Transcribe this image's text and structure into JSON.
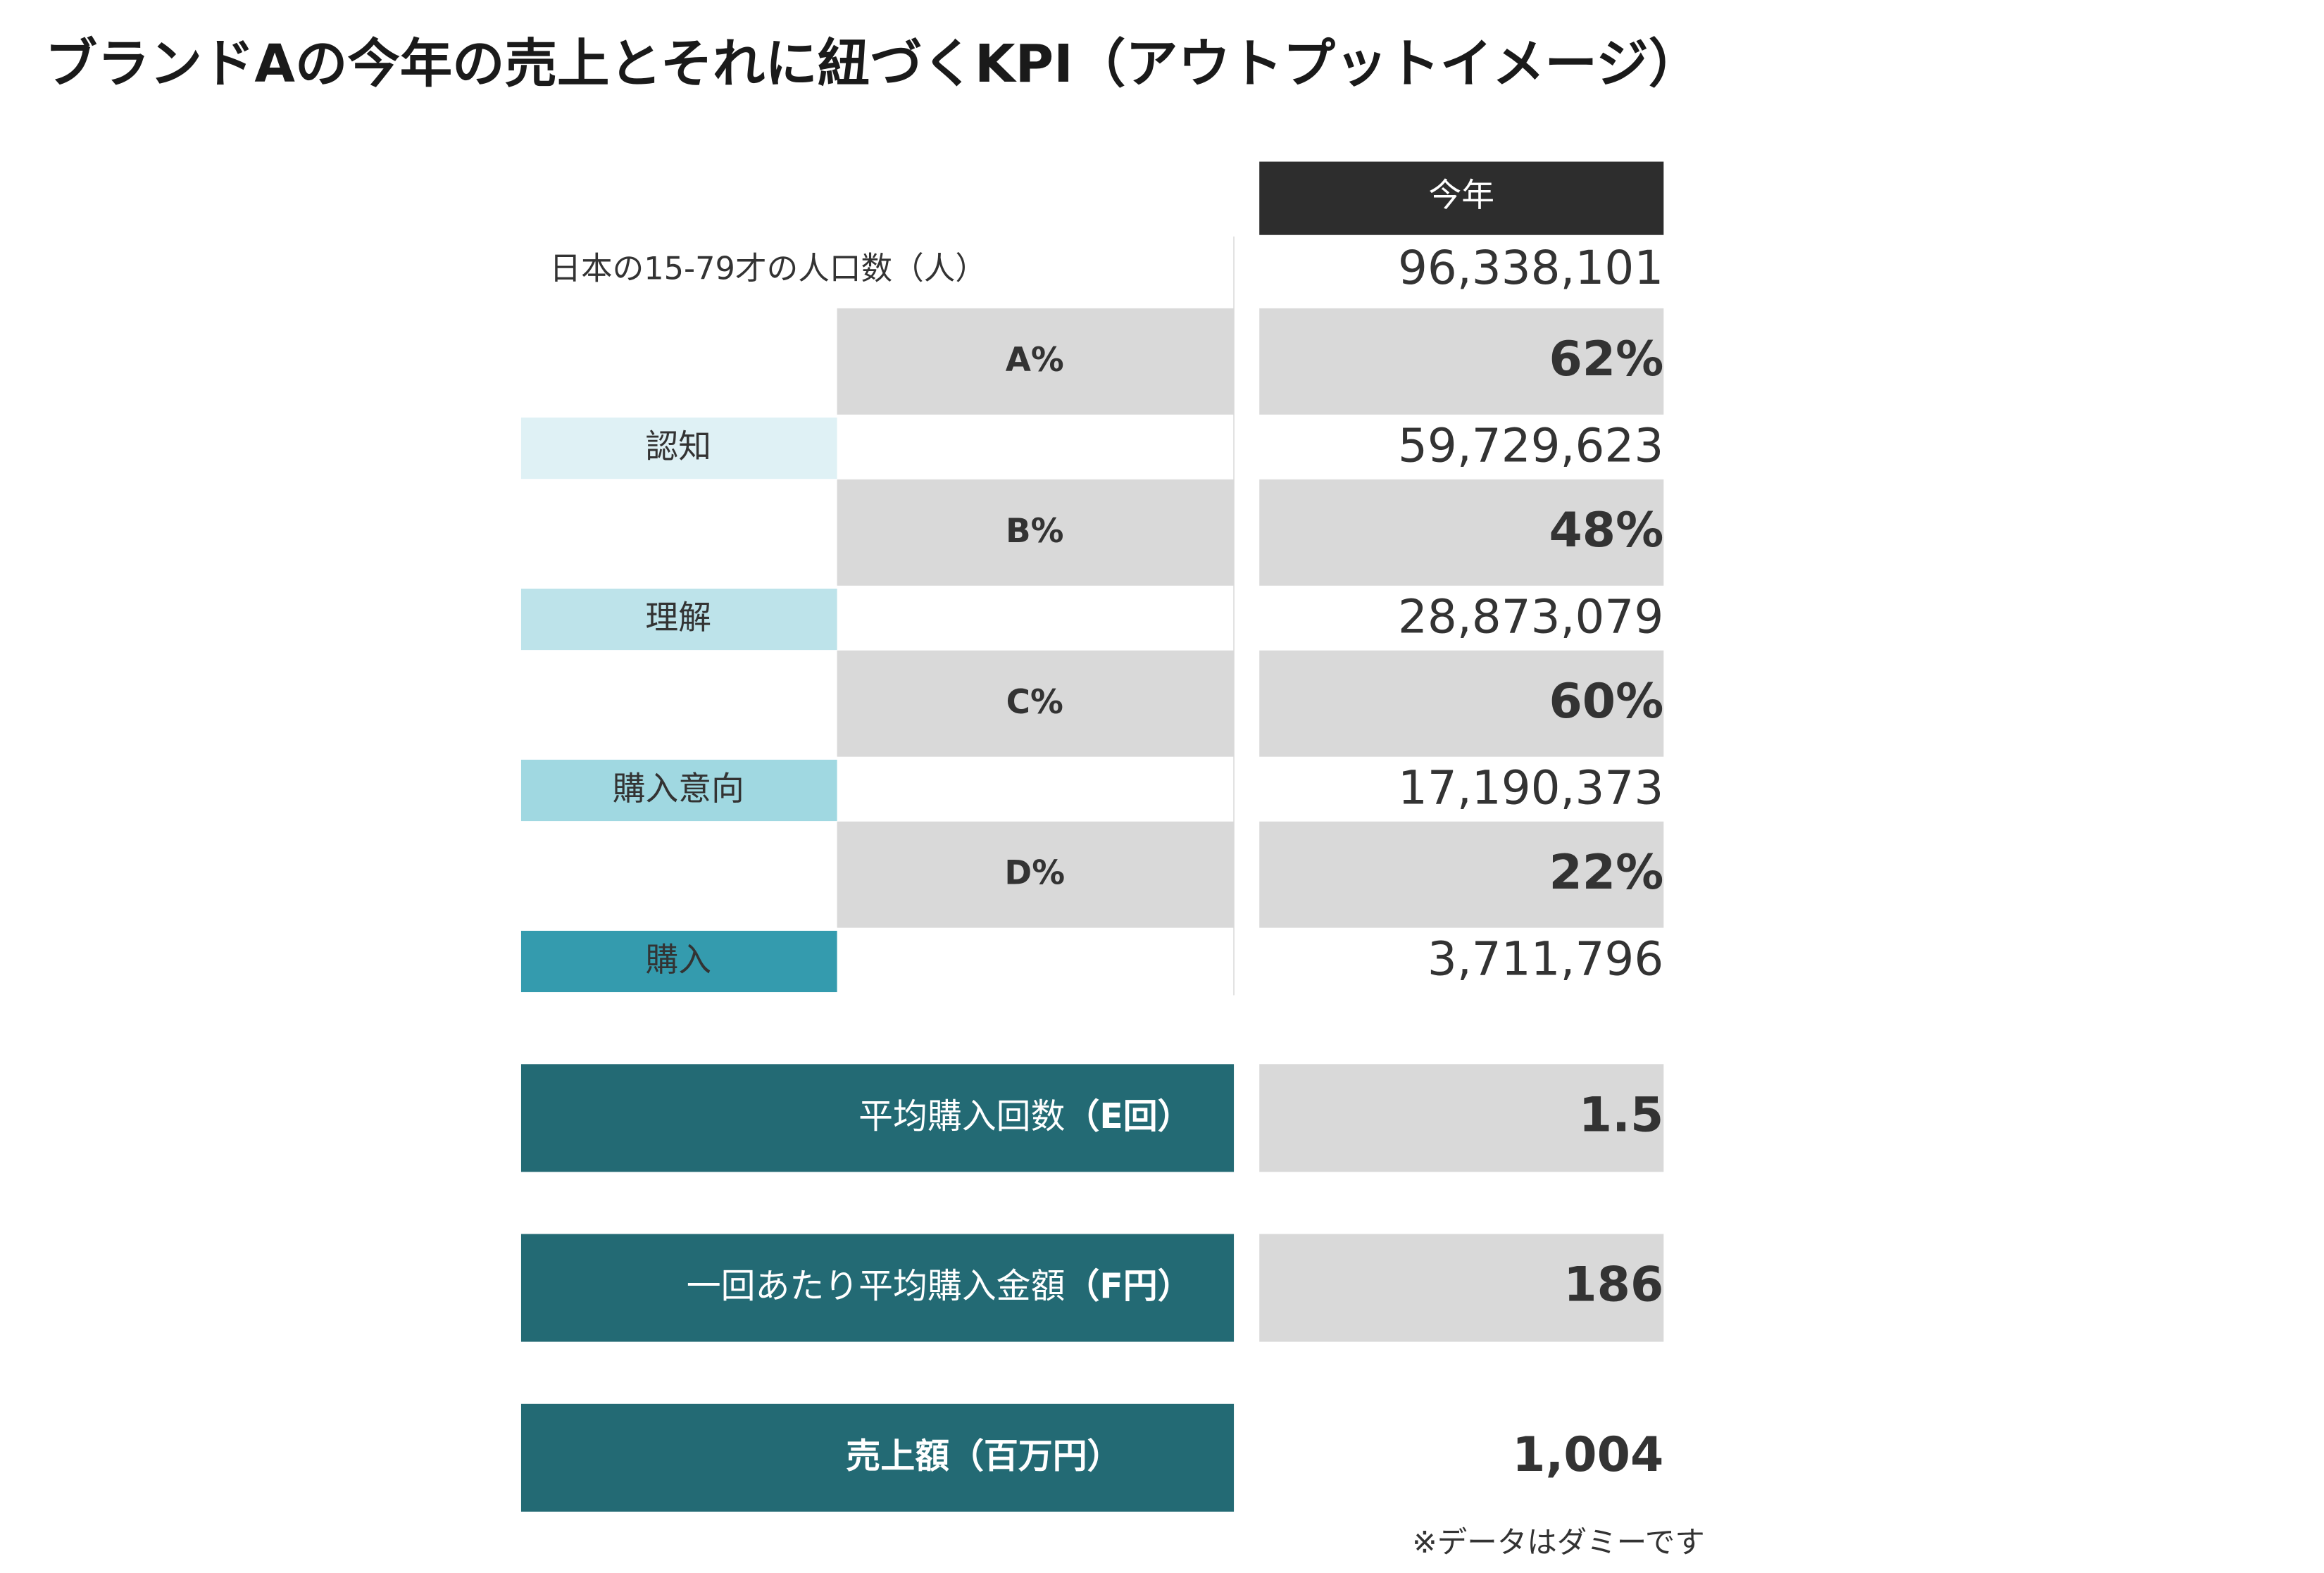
{
  "title": "ブランドAの今年の売上とそれに紐づくKPI（アウトプットイメージ）",
  "header": "今年",
  "base": {
    "label": "日本の15-79才の人口数（人）",
    "value": "96,338,101"
  },
  "funnel": [
    {
      "rate_label": "A%",
      "rate": "62%",
      "stage": "認知",
      "stage_value": "59,729,623",
      "color": "#dff1f5"
    },
    {
      "rate_label": "B%",
      "rate": "48%",
      "stage": "理解",
      "stage_value": "28,873,079",
      "color": "#bde3ea"
    },
    {
      "rate_label": "C%",
      "rate": "60%",
      "stage": "購入意向",
      "stage_value": "17,190,373",
      "color": "#a0d8e1"
    },
    {
      "rate_label": "D%",
      "rate": "22%",
      "stage": "購入",
      "stage_value": "3,711,796",
      "color": "#349bae"
    }
  ],
  "kpis": [
    {
      "label": "平均購入回数",
      "unit": "（E回）",
      "value": "1.5"
    },
    {
      "label": "一回あたり平均購入金額",
      "unit": "（F円）",
      "value": "186"
    },
    {
      "label": "売上額（百万円）",
      "value": "1,004"
    }
  ],
  "footnote": "※データはダミーです"
}
